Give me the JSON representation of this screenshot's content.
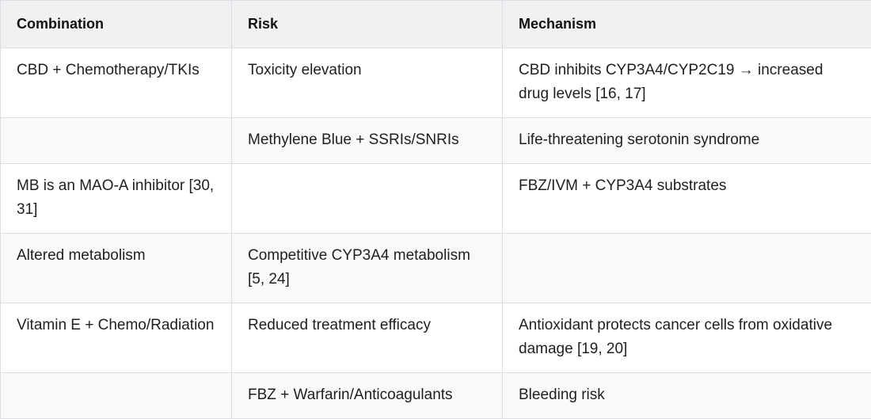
{
  "table": {
    "header": [
      "Combination",
      "Risk",
      "Mechanism"
    ],
    "rows": [
      [
        "CBD + Chemotherapy/TKIs",
        "Toxicity elevation",
        "CBD inhibits CYP3A4/CYP2C19 → increased drug levels [16, 17]"
      ],
      [
        null,
        "Methylene Blue + SSRIs/SNRIs",
        "Life-threatening serotonin syndrome"
      ],
      [
        "MB is an MAO-A inhibitor [30, 31]",
        null,
        "FBZ/IVM + CYP3A4 substrates"
      ],
      [
        "Altered metabolism",
        "Competitive CYP3A4 metabolism [5, 24]",
        null
      ],
      [
        "Vitamin E + Chemo/Radiation",
        "Reduced treatment efficacy",
        "Antioxidant protects cancer cells from oxidative damage [19, 20]"
      ],
      [
        null,
        "FBZ + Warfarin/Anticoagulants",
        "Bleeding risk"
      ]
    ]
  }
}
